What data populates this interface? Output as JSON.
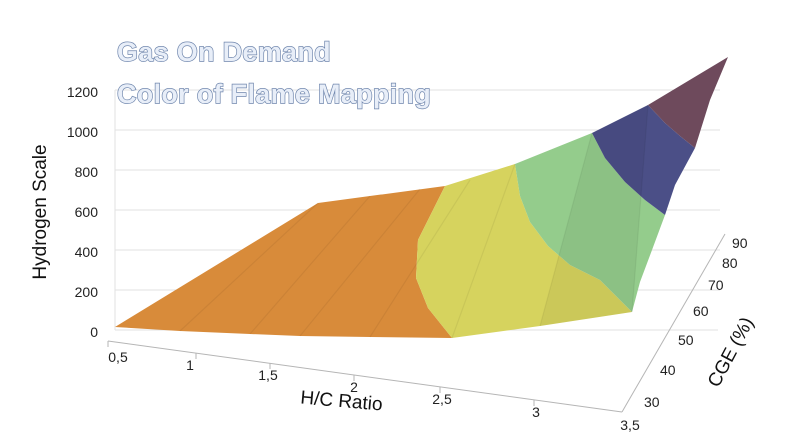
{
  "chart_data": {
    "type": "surface",
    "title_lines": [
      "Gas On Demand",
      "Color of Flame Mapping"
    ],
    "zlabel": "Hydrogen Scale",
    "xlabel": "H/C Ratio",
    "ylabel": "CGE (%)",
    "z_ticks": [
      "0",
      "200",
      "400",
      "600",
      "800",
      "1000",
      "1200"
    ],
    "x_ticks": [
      "0,5",
      "1",
      "1,5",
      "2",
      "2,5",
      "3",
      "3,5"
    ],
    "y_ticks": [
      "30",
      "40",
      "50",
      "60",
      "70",
      "80",
      "90"
    ],
    "zlim": [
      0,
      1200
    ],
    "xlim": [
      0.5,
      3.5
    ],
    "ylim": [
      30,
      90
    ],
    "grid": true,
    "colors": {
      "orange": "#d88b3a",
      "yellow": "#d6d35e",
      "green": "#94cc8c",
      "navy": "#4b4f87",
      "purple": "#6e4a5c"
    },
    "surface_regions": [
      {
        "name": "orange",
        "approx_x_range": [
          0.5,
          2.4
        ]
      },
      {
        "name": "yellow",
        "approx_x_range": [
          2.0,
          3.0
        ]
      },
      {
        "name": "green",
        "approx_x_range": [
          2.5,
          3.4
        ]
      },
      {
        "name": "navy",
        "approx_x_range": [
          3.0,
          3.5
        ]
      },
      {
        "name": "purple",
        "approx_x_range": [
          3.3,
          3.5
        ]
      }
    ]
  }
}
